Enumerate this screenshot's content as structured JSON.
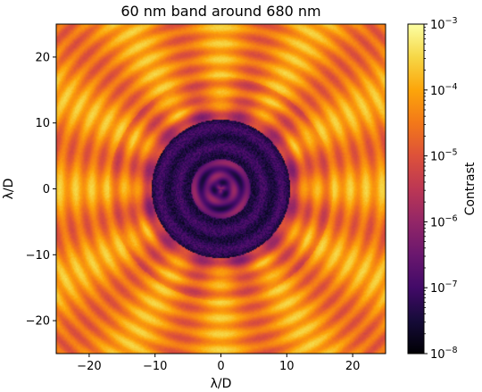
{
  "chart_data": {
    "type": "heatmap",
    "title": "60 nm band around 680 nm",
    "xlabel": "λ/D",
    "ylabel": "λ/D",
    "xlim": [
      -25,
      25
    ],
    "ylim": [
      -25,
      25
    ],
    "x_ticks": [
      -20,
      -10,
      0,
      10,
      20
    ],
    "x_tick_labels": [
      "−20",
      "−10",
      "0",
      "10",
      "20"
    ],
    "y_ticks": [
      -20,
      -10,
      0,
      10,
      20
    ],
    "y_tick_labels": [
      "−20",
      "−10",
      "0",
      "10",
      "20"
    ],
    "grid": false,
    "colormap": "inferno",
    "colorbar": {
      "label": "Contrast",
      "scale": "log",
      "range": [
        1e-08,
        0.001
      ],
      "ticks": [
        1e-08,
        1e-07,
        1e-06,
        1e-05,
        0.0001,
        0.001
      ],
      "tick_labels": [
        {
          "base": "10",
          "exp": "−8"
        },
        {
          "base": "10",
          "exp": "−7"
        },
        {
          "base": "10",
          "exp": "−6"
        },
        {
          "base": "10",
          "exp": "−5"
        },
        {
          "base": "10",
          "exp": "−4"
        },
        {
          "base": "10",
          "exp": "−3"
        }
      ]
    },
    "features": {
      "dark_hole_radius_lambda_over_d": 10.5,
      "dark_hole_contrast": 3e-08,
      "background_contrast": 5e-05,
      "radial_spokes": 12
    }
  }
}
